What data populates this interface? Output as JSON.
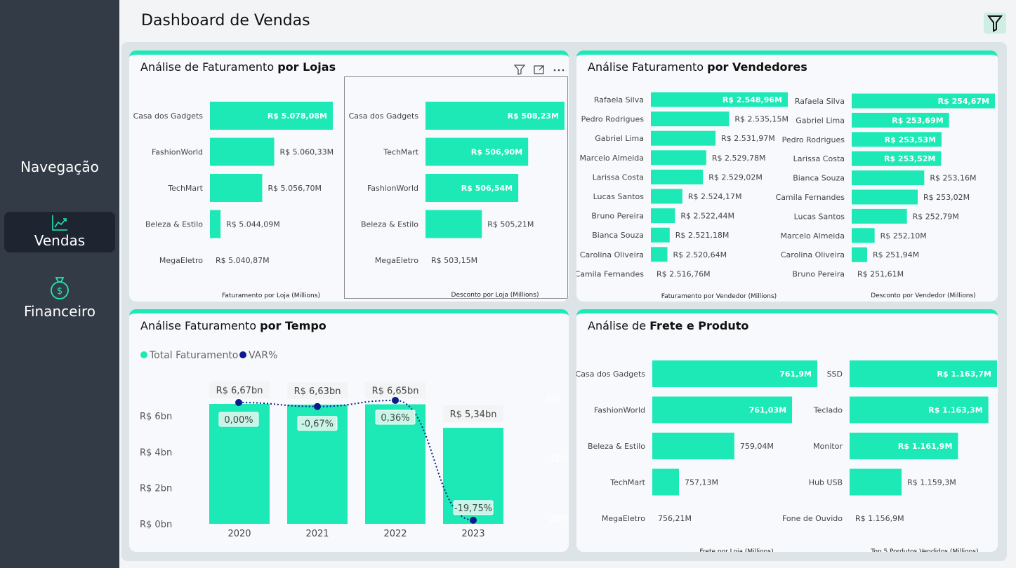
{
  "page": {
    "title": "Dashboard de Vendas"
  },
  "sidebar": {
    "heading": "Navegação",
    "items": [
      {
        "label": "Vendas",
        "icon": "line-chart-icon",
        "active": true
      },
      {
        "label": "Financeiro",
        "icon": "money-bag-icon",
        "active": false
      }
    ]
  },
  "colors": {
    "accent": "#1de9b6",
    "sidebar": "#333b47",
    "line": "#0d1a8c"
  },
  "cards": {
    "lojas": {
      "title_prefix": "Análise de Faturamento ",
      "title_bold": "por Lojas"
    },
    "vendedores": {
      "title_prefix": "Análise Faturamento ",
      "title_bold": "por Vendedores"
    },
    "tempo": {
      "title_prefix": "Análise Faturamento ",
      "title_bold": "por Tempo"
    },
    "frete": {
      "title_prefix": "Análise de ",
      "title_bold": "Frete e Produto"
    }
  },
  "chart_data": [
    {
      "id": "faturamento-loja",
      "type": "bar",
      "orientation": "horizontal",
      "xlabel": "Faturamento por Loja (Millions)",
      "categories": [
        "Casa dos Gadgets",
        "FashionWorld",
        "TechMart",
        "Beleza & Estilo",
        "MegaEletro"
      ],
      "values": [
        5078.08,
        5060.33,
        5056.7,
        5044.09,
        5040.87
      ],
      "labels": [
        "R$ 5.078,08M",
        "R$ 5.060,33M",
        "R$ 5.056,70M",
        "R$ 5.044,09M",
        "R$ 5.040,87M"
      ]
    },
    {
      "id": "desconto-loja",
      "type": "bar",
      "orientation": "horizontal",
      "xlabel": "Desconto por Loja (Millions)",
      "categories": [
        "Casa dos Gadgets",
        "TechMart",
        "FashionWorld",
        "Beleza & Estilo",
        "MegaEletro"
      ],
      "values": [
        508.23,
        506.9,
        506.54,
        505.21,
        503.15
      ],
      "labels": [
        "R$ 508,23M",
        "R$ 506,90M",
        "R$ 506,54M",
        "R$ 505,21M",
        "R$ 503,15M"
      ]
    },
    {
      "id": "faturamento-vendedor",
      "type": "bar",
      "orientation": "horizontal",
      "xlabel": "Faturamento por Vendedor (Millions)",
      "categories": [
        "Rafaela Silva",
        "Pedro Rodrigues",
        "Gabriel Lima",
        "Marcelo Almeida",
        "Larissa Costa",
        "Lucas Santos",
        "Bruno Pereira",
        "Bianca Souza",
        "Carolina Oliveira",
        "Camila Fernandes"
      ],
      "values": [
        2548.96,
        2535.15,
        2531.97,
        2529.78,
        2529.02,
        2524.17,
        2522.44,
        2521.18,
        2520.64,
        2516.76
      ],
      "labels": [
        "R$ 2.548,96M",
        "R$ 2.535,15M",
        "R$ 2.531,97M",
        "R$ 2.529,78M",
        "R$ 2.529,02M",
        "R$ 2.524,17M",
        "R$ 2.522,44M",
        "R$ 2.521,18M",
        "R$ 2.520,64M",
        "R$ 2.516,76M"
      ]
    },
    {
      "id": "desconto-vendedor",
      "type": "bar",
      "orientation": "horizontal",
      "xlabel": "Desconto por Vendedor (Millions)",
      "categories": [
        "Rafaela Silva",
        "Gabriel Lima",
        "Pedro Rodrigues",
        "Larissa Costa",
        "Bianca Souza",
        "Camila Fernandes",
        "Lucas Santos",
        "Marcelo Almeida",
        "Carolina Oliveira",
        "Bruno Pereira"
      ],
      "values": [
        254.67,
        253.69,
        253.53,
        253.52,
        253.16,
        253.02,
        252.79,
        252.1,
        251.94,
        251.61
      ],
      "labels": [
        "R$ 254,67M",
        "R$ 253,69M",
        "R$ 253,53M",
        "R$ 253,52M",
        "R$ 253,16M",
        "R$ 253,02M",
        "R$ 252,79M",
        "R$ 252,10M",
        "R$ 251,94M",
        "R$ 251,61M"
      ]
    },
    {
      "id": "faturamento-tempo",
      "type": "bar",
      "legend": [
        "Total Faturamento",
        "VAR%"
      ],
      "categories": [
        "2020",
        "2021",
        "2022",
        "2023"
      ],
      "series": [
        {
          "name": "Total Faturamento",
          "values": [
            6.67,
            6.63,
            6.65,
            5.34
          ],
          "labels": [
            "R$ 6,67bn",
            "R$ 6,63bn",
            "R$ 6,65bn",
            "R$ 5,34bn"
          ]
        },
        {
          "name": "VAR%",
          "type": "line",
          "values": [
            0.0,
            -0.67,
            0.36,
            -19.75
          ],
          "labels": [
            "0,00%",
            "-0,67%",
            "0,36%",
            "-19,75%"
          ]
        }
      ],
      "yticks": [
        "R$ 0bn",
        "R$ 2bn",
        "R$ 4bn",
        "R$ 6bn"
      ],
      "y2ticks": [
        "0%",
        "-10%",
        "-20%"
      ]
    },
    {
      "id": "frete-loja",
      "type": "bar",
      "orientation": "horizontal",
      "xlabel": "Frete por Loja (Millions)",
      "categories": [
        "Casa dos Gadgets",
        "FashionWorld",
        "Beleza & Estilo",
        "TechMart",
        "MegaEletro"
      ],
      "values": [
        761.9,
        761.03,
        759.04,
        757.13,
        756.21
      ],
      "labels": [
        "761,9M",
        "761,03M",
        "759,04M",
        "757,13M",
        "756,21M"
      ]
    },
    {
      "id": "top5-produtos",
      "type": "bar",
      "orientation": "horizontal",
      "xlabel": "Top 5 Pordutos Vendidos (Millions)",
      "categories": [
        "SSD",
        "Teclado",
        "Monitor",
        "Hub USB",
        "Fone de Ouvido"
      ],
      "values": [
        1163.7,
        1163.3,
        1161.9,
        1159.3,
        1156.9
      ],
      "labels": [
        "R$ 1.163,7M",
        "R$ 1.163,3M",
        "R$ 1.161,9M",
        "R$ 1.159,3M",
        "R$ 1.156,9M"
      ]
    }
  ]
}
